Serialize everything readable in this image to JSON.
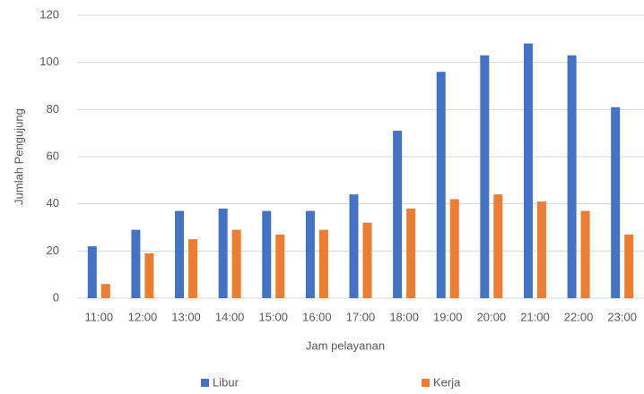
{
  "chart_data": {
    "type": "bar",
    "x_label": "Jam pelayanan",
    "y_label": "Jumlah Pengujung",
    "categories": [
      "11:00",
      "12:00",
      "13:00",
      "14:00",
      "15:00",
      "16:00",
      "17:00",
      "18:00",
      "19:00",
      "20:00",
      "21:00",
      "22:00",
      "23:00"
    ],
    "series": [
      {
        "name": "Libur",
        "color": "#4472c4",
        "values": [
          22,
          29,
          37,
          38,
          37,
          37,
          44,
          71,
          96,
          103,
          108,
          103,
          81
        ]
      },
      {
        "name": "Kerja",
        "color": "#ed7d31",
        "values": [
          6,
          19,
          25,
          29,
          27,
          29,
          32,
          38,
          42,
          44,
          41,
          37,
          27
        ]
      }
    ],
    "ylim": [
      0,
      120
    ],
    "yticks": [
      0,
      20,
      40,
      60,
      80,
      100,
      120
    ],
    "grid": true,
    "legend": "bottom"
  }
}
